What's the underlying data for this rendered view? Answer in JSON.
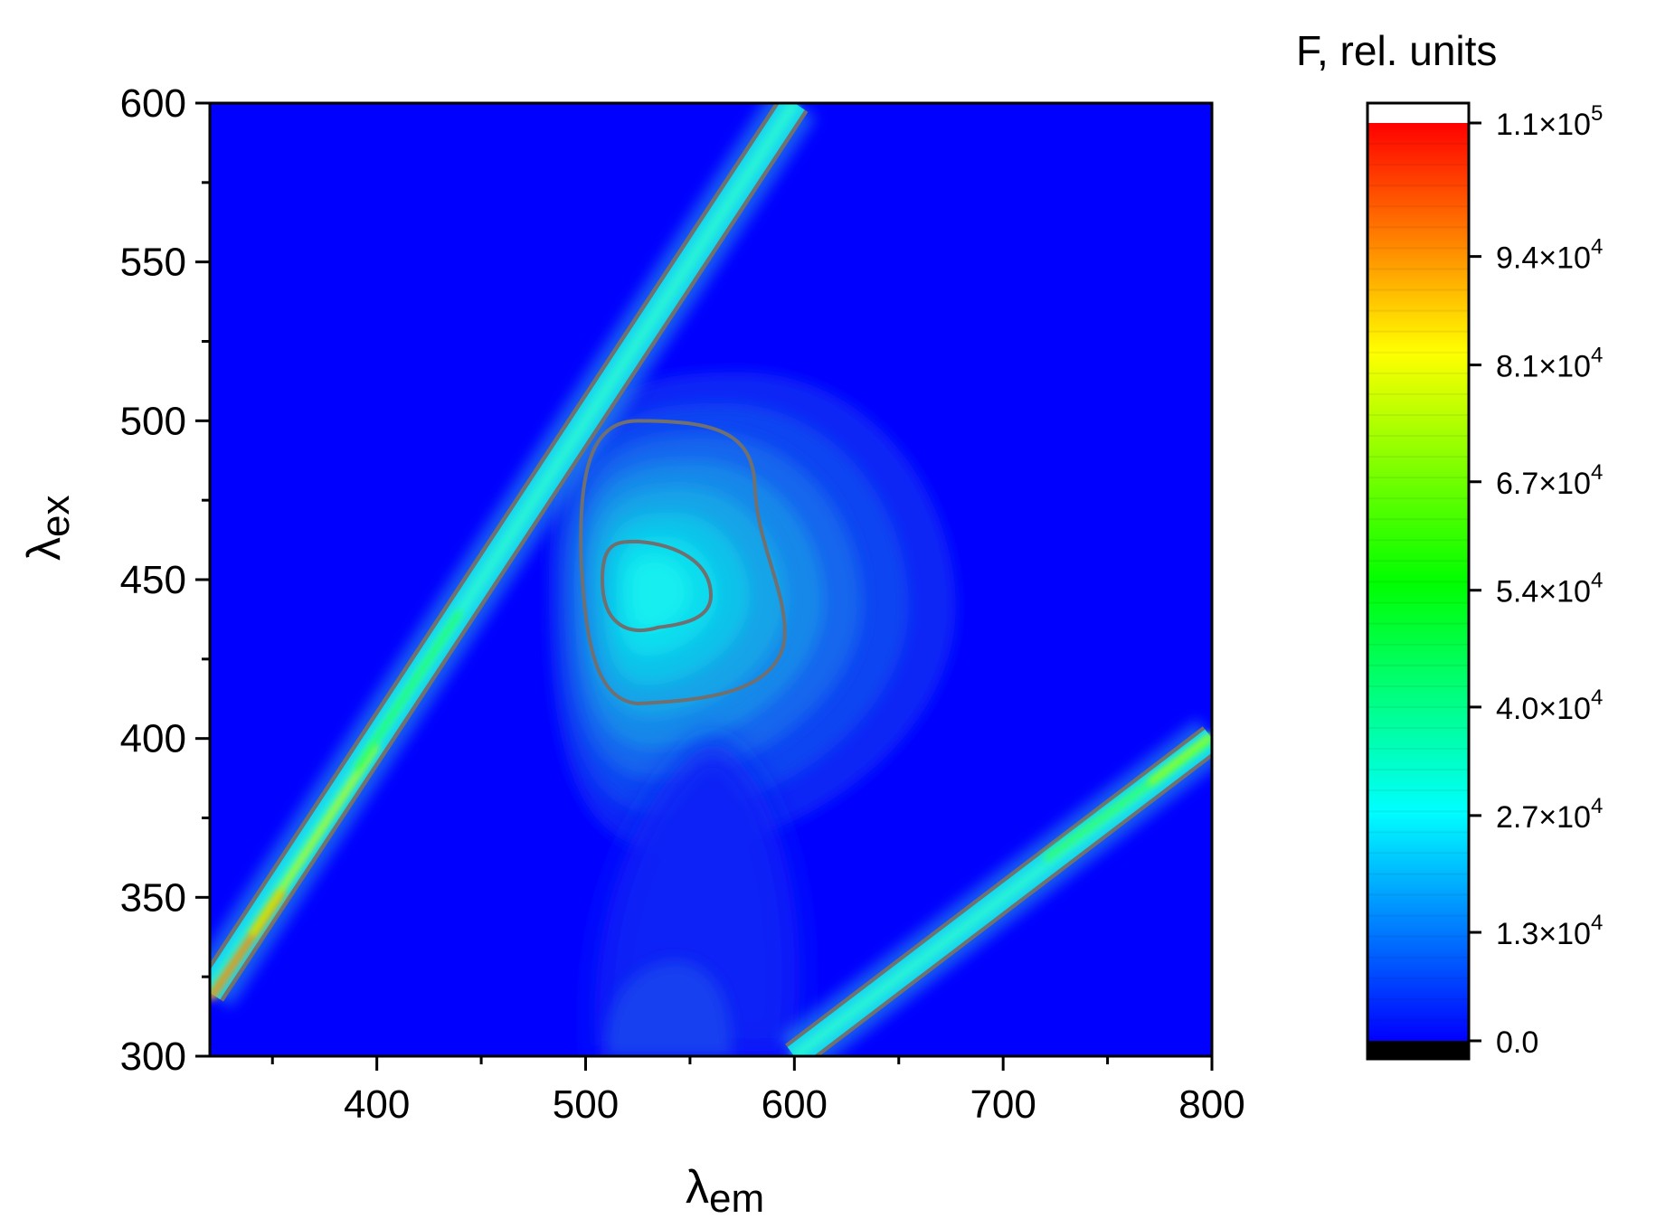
{
  "chart_data": {
    "type": "heatmap",
    "subtype": "excitation-emission contour map",
    "x_axis": {
      "label_main": "λ",
      "label_sub": "em",
      "range": [
        320,
        800
      ],
      "ticks": [
        400,
        500,
        600,
        700,
        800
      ],
      "tick_labels": [
        "400",
        "500",
        "600",
        "700",
        "800"
      ],
      "minor_step": 50
    },
    "y_axis": {
      "label_main": "λ",
      "label_sub": "ex",
      "range": [
        300,
        600
      ],
      "ticks": [
        300,
        350,
        400,
        450,
        500,
        550,
        600
      ],
      "tick_labels": [
        "300",
        "350",
        "400",
        "450",
        "500",
        "550",
        "600"
      ],
      "minor_step": 25
    },
    "colorbar": {
      "title": "F, rel. units",
      "range": [
        0,
        110000
      ],
      "ticks": [
        {
          "value": 0,
          "mantissa": "0.0",
          "exp": ""
        },
        {
          "value": 13000,
          "mantissa": "1.3×10",
          "exp": "4"
        },
        {
          "value": 27000,
          "mantissa": "2.7×10",
          "exp": "4"
        },
        {
          "value": 40000,
          "mantissa": "4.0×10",
          "exp": "4"
        },
        {
          "value": 54000,
          "mantissa": "5.4×10",
          "exp": "4"
        },
        {
          "value": 67000,
          "mantissa": "6.7×10",
          "exp": "4"
        },
        {
          "value": 81000,
          "mantissa": "8.1×10",
          "exp": "4"
        },
        {
          "value": 94000,
          "mantissa": "9.4×10",
          "exp": "4"
        },
        {
          "value": 110000,
          "mantissa": "1.1×10",
          "exp": "5"
        }
      ],
      "colors": [
        "#0000ff",
        "#00ffff",
        "#00ff00",
        "#ffff00",
        "#ff0000"
      ],
      "under_color": "#000000",
      "over_color": "#ffffff"
    },
    "background_color": "#0000ff",
    "contour_line_color": "#707070",
    "features": [
      {
        "name": "fluorescence peak",
        "em": 530,
        "ex": 447,
        "value": 30000
      },
      {
        "name": "first-order scatter band",
        "from": [
          320,
          320
        ],
        "to": [
          600,
          600
        ]
      },
      {
        "name": "second-order scatter band",
        "from": [
          600,
          300
        ],
        "to": [
          800,
          400
        ]
      }
    ]
  }
}
